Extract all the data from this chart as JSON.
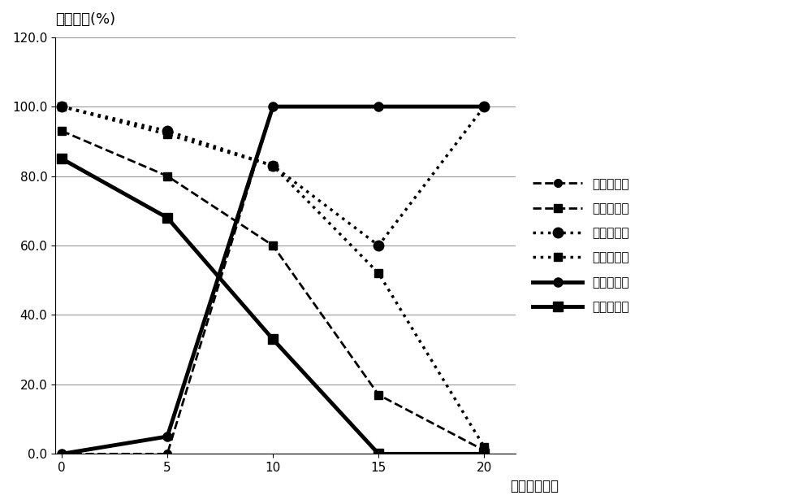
{
  "x": [
    0,
    5,
    10,
    15,
    20
  ],
  "series": [
    {
      "name": "高压并汽门",
      "y": [
        0,
        0,
        100,
        100,
        100
      ],
      "linestyle": "--",
      "marker": "o",
      "linewidth": 2.0,
      "markersize": 7,
      "color": "#000000",
      "dashes": [
        6,
        3
      ]
    },
    {
      "name": "高压旁路门",
      "y": [
        93,
        80,
        60,
        17,
        1
      ],
      "linestyle": "--",
      "marker": "s",
      "linewidth": 2.0,
      "markersize": 7,
      "color": "#000000",
      "dashes": [
        6,
        3
      ]
    },
    {
      "name": "中压并汽门",
      "y": [
        100,
        93,
        83,
        60,
        100
      ],
      "linestyle": ":",
      "marker": "o",
      "linewidth": 2.5,
      "markersize": 9,
      "color": "#000000",
      "dashes": []
    },
    {
      "name": "中压旁路门",
      "y": [
        100,
        92,
        83,
        52,
        2
      ],
      "linestyle": ":",
      "marker": "s",
      "linewidth": 2.5,
      "markersize": 7,
      "color": "#000000",
      "dashes": []
    },
    {
      "name": "低压并汽门",
      "y": [
        0,
        5,
        100,
        100,
        100
      ],
      "linestyle": "-",
      "marker": "o",
      "linewidth": 3.5,
      "markersize": 8,
      "color": "#000000",
      "dashes": []
    },
    {
      "name": "低压旁路门",
      "y": [
        85,
        68,
        33,
        0,
        0
      ],
      "linestyle": "-",
      "marker": "s",
      "linewidth": 3.5,
      "markersize": 8,
      "color": "#000000",
      "dashes": []
    }
  ],
  "title": "阀门开度(%)",
  "xlabel": "时间（分钟）",
  "ylim": [
    0.0,
    120.0
  ],
  "xlim": [
    -0.3,
    21.5
  ],
  "yticks": [
    0.0,
    20.0,
    40.0,
    60.0,
    80.0,
    100.0,
    120.0
  ],
  "xticks": [
    0,
    5,
    10,
    15,
    20
  ],
  "grid_color": "#999999",
  "background_color": "#ffffff",
  "title_fontsize": 13,
  "label_fontsize": 12,
  "tick_fontsize": 11,
  "legend_fontsize": 11
}
